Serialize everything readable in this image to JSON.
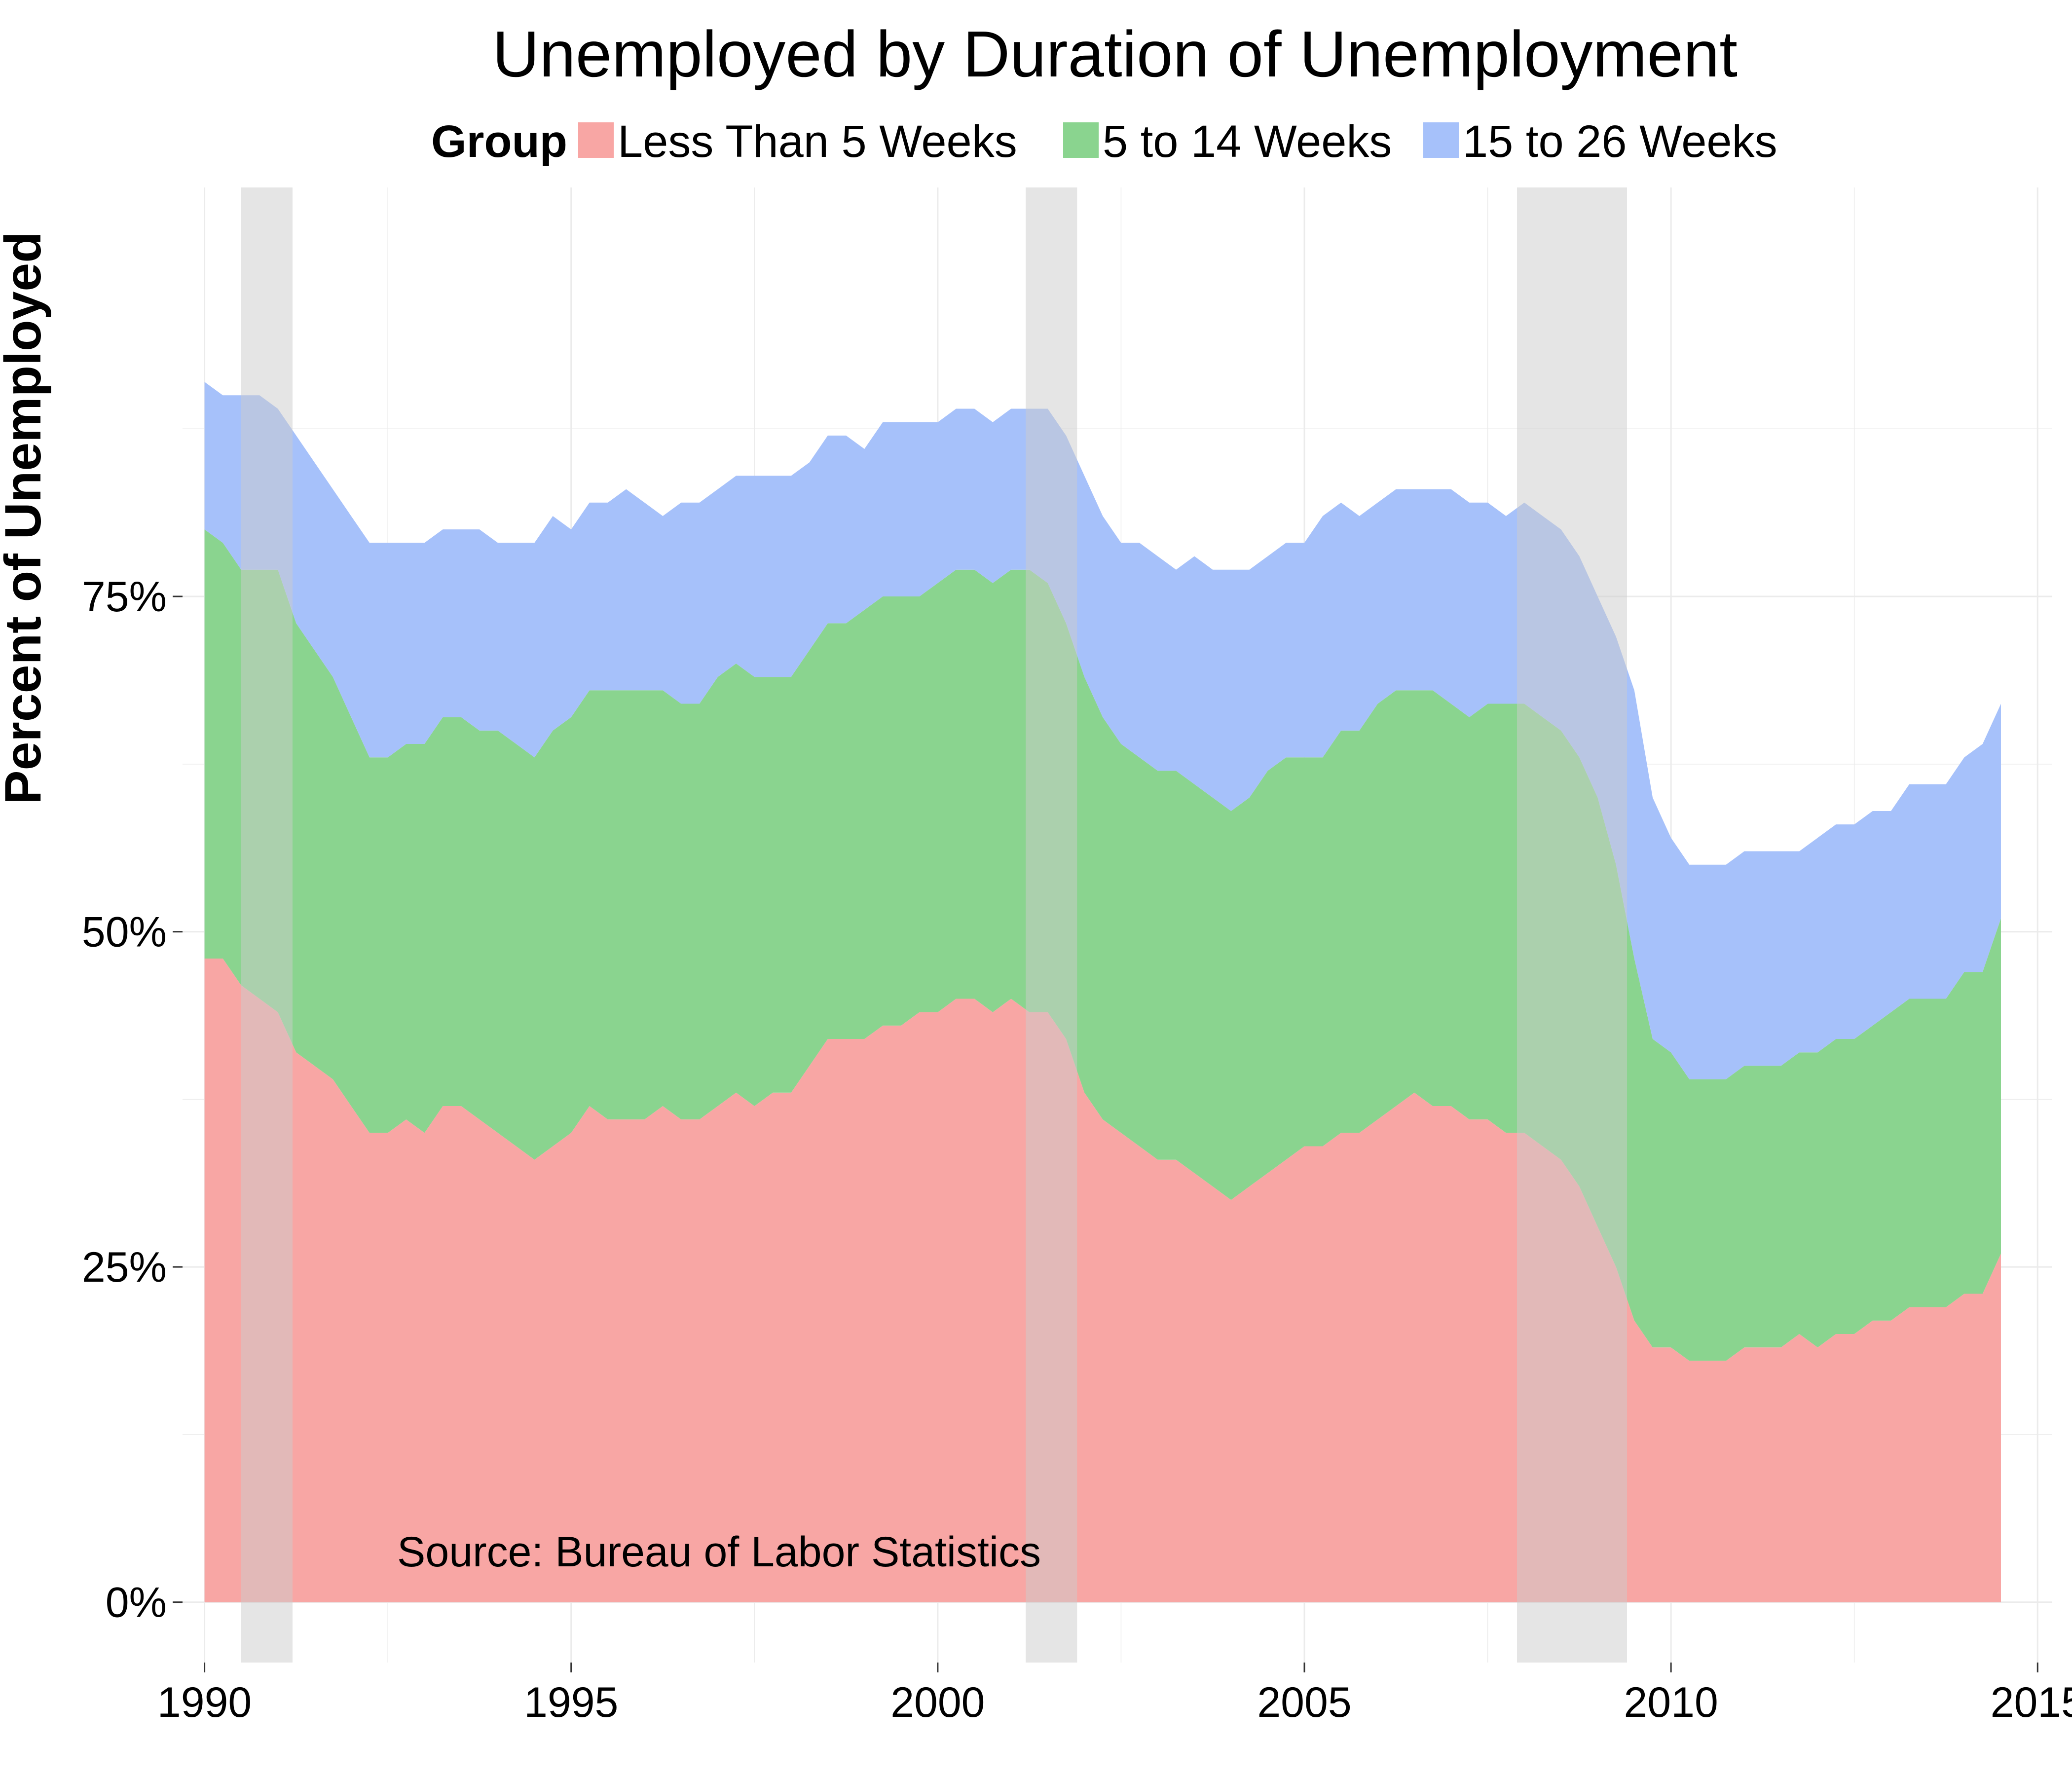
{
  "chart_data": {
    "type": "area",
    "stacked": true,
    "title": "Unemployed by Duration of Unemployment",
    "ylabel": "Percent of Unemployed",
    "xlabel": "",
    "legend_title": "Group",
    "legend_position": "top",
    "annotation": "Source: Bureau of Labor Statistics",
    "xlim": [
      1989.7,
      2015.2
    ],
    "ylim": [
      -0.045,
      1.055
    ],
    "x_ticks": [
      1990,
      1995,
      2000,
      2005,
      2010,
      2015
    ],
    "x_tick_labels": [
      "1990",
      "1995",
      "2000",
      "2005",
      "2010",
      "2015"
    ],
    "y_ticks": [
      0,
      0.25,
      0.5,
      0.75
    ],
    "y_tick_labels": [
      "0%",
      "25%",
      "50%",
      "75%"
    ],
    "grid": true,
    "recession_shading": [
      [
        1990.5,
        1991.2
      ],
      [
        2001.2,
        2001.9
      ],
      [
        2007.9,
        2009.4
      ]
    ],
    "colors": {
      "less_than_5": "#f8a6a4",
      "5_to_14": "#8ad48f",
      "15_to_26": "#a6c1fa",
      "recession": "#cccccc",
      "grid": "#ebebeb"
    },
    "x": [
      1990.0,
      1990.25,
      1990.5,
      1990.75,
      1991.0,
      1991.25,
      1991.5,
      1991.75,
      1992.0,
      1992.25,
      1992.5,
      1992.75,
      1993.0,
      1993.25,
      1993.5,
      1993.75,
      1994.0,
      1994.25,
      1994.5,
      1994.75,
      1995.0,
      1995.25,
      1995.5,
      1995.75,
      1996.0,
      1996.25,
      1996.5,
      1996.75,
      1997.0,
      1997.25,
      1997.5,
      1997.75,
      1998.0,
      1998.25,
      1998.5,
      1998.75,
      1999.0,
      1999.25,
      1999.5,
      1999.75,
      2000.0,
      2000.25,
      2000.5,
      2000.75,
      2001.0,
      2001.25,
      2001.5,
      2001.75,
      2002.0,
      2002.25,
      2002.5,
      2002.75,
      2003.0,
      2003.25,
      2003.5,
      2003.75,
      2004.0,
      2004.25,
      2004.5,
      2004.75,
      2005.0,
      2005.25,
      2005.5,
      2005.75,
      2006.0,
      2006.25,
      2006.5,
      2006.75,
      2007.0,
      2007.25,
      2007.5,
      2007.75,
      2008.0,
      2008.25,
      2008.5,
      2008.75,
      2009.0,
      2009.25,
      2009.5,
      2009.75,
      2010.0,
      2010.25,
      2010.5,
      2010.75,
      2011.0,
      2011.25,
      2011.5,
      2011.75,
      2012.0,
      2012.25,
      2012.5,
      2012.75,
      2013.0,
      2013.25,
      2013.5,
      2013.75,
      2014.0,
      2014.25,
      2014.5
    ],
    "series": [
      {
        "name": "Less Than 5 Weeks",
        "values": [
          0.48,
          0.48,
          0.46,
          0.45,
          0.44,
          0.41,
          0.4,
          0.39,
          0.37,
          0.35,
          0.35,
          0.36,
          0.35,
          0.37,
          0.37,
          0.36,
          0.35,
          0.34,
          0.33,
          0.34,
          0.35,
          0.37,
          0.36,
          0.36,
          0.36,
          0.37,
          0.36,
          0.36,
          0.37,
          0.38,
          0.37,
          0.38,
          0.38,
          0.4,
          0.42,
          0.42,
          0.42,
          0.43,
          0.43,
          0.44,
          0.44,
          0.45,
          0.45,
          0.44,
          0.45,
          0.44,
          0.44,
          0.42,
          0.38,
          0.36,
          0.35,
          0.34,
          0.33,
          0.33,
          0.32,
          0.31,
          0.3,
          0.31,
          0.32,
          0.33,
          0.34,
          0.34,
          0.35,
          0.35,
          0.36,
          0.37,
          0.38,
          0.37,
          0.37,
          0.36,
          0.36,
          0.35,
          0.35,
          0.34,
          0.33,
          0.31,
          0.28,
          0.25,
          0.21,
          0.19,
          0.19,
          0.18,
          0.18,
          0.18,
          0.19,
          0.19,
          0.19,
          0.2,
          0.19,
          0.2,
          0.2,
          0.21,
          0.21,
          0.22,
          0.22,
          0.22,
          0.23,
          0.23,
          0.26
        ]
      },
      {
        "name": "5 to 14 Weeks",
        "values": [
          0.32,
          0.31,
          0.31,
          0.32,
          0.33,
          0.32,
          0.31,
          0.3,
          0.29,
          0.28,
          0.28,
          0.28,
          0.29,
          0.29,
          0.29,
          0.29,
          0.3,
          0.3,
          0.3,
          0.31,
          0.31,
          0.31,
          0.32,
          0.32,
          0.32,
          0.31,
          0.31,
          0.31,
          0.32,
          0.32,
          0.32,
          0.31,
          0.31,
          0.31,
          0.31,
          0.31,
          0.32,
          0.32,
          0.32,
          0.31,
          0.32,
          0.32,
          0.32,
          0.32,
          0.32,
          0.33,
          0.32,
          0.31,
          0.31,
          0.3,
          0.29,
          0.29,
          0.29,
          0.29,
          0.29,
          0.29,
          0.29,
          0.29,
          0.3,
          0.3,
          0.29,
          0.29,
          0.3,
          0.3,
          0.31,
          0.31,
          0.3,
          0.31,
          0.3,
          0.3,
          0.31,
          0.32,
          0.32,
          0.32,
          0.32,
          0.32,
          0.32,
          0.3,
          0.27,
          0.23,
          0.22,
          0.21,
          0.21,
          0.21,
          0.21,
          0.21,
          0.21,
          0.21,
          0.22,
          0.22,
          0.22,
          0.22,
          0.23,
          0.23,
          0.23,
          0.23,
          0.24,
          0.24,
          0.25
        ]
      },
      {
        "name": "15 to 26 Weeks",
        "values": [
          0.11,
          0.11,
          0.13,
          0.13,
          0.12,
          0.14,
          0.14,
          0.14,
          0.15,
          0.16,
          0.16,
          0.15,
          0.15,
          0.14,
          0.14,
          0.15,
          0.14,
          0.15,
          0.16,
          0.16,
          0.14,
          0.14,
          0.14,
          0.15,
          0.14,
          0.13,
          0.15,
          0.15,
          0.14,
          0.14,
          0.15,
          0.15,
          0.15,
          0.14,
          0.14,
          0.14,
          0.12,
          0.13,
          0.13,
          0.13,
          0.12,
          0.12,
          0.12,
          0.12,
          0.12,
          0.12,
          0.13,
          0.14,
          0.15,
          0.15,
          0.15,
          0.16,
          0.16,
          0.15,
          0.17,
          0.17,
          0.18,
          0.17,
          0.16,
          0.16,
          0.16,
          0.18,
          0.17,
          0.16,
          0.15,
          0.15,
          0.15,
          0.15,
          0.16,
          0.16,
          0.15,
          0.14,
          0.15,
          0.15,
          0.15,
          0.15,
          0.15,
          0.17,
          0.2,
          0.18,
          0.16,
          0.16,
          0.16,
          0.16,
          0.16,
          0.16,
          0.16,
          0.15,
          0.16,
          0.16,
          0.16,
          0.16,
          0.15,
          0.16,
          0.16,
          0.16,
          0.16,
          0.17,
          0.16
        ]
      }
    ]
  }
}
